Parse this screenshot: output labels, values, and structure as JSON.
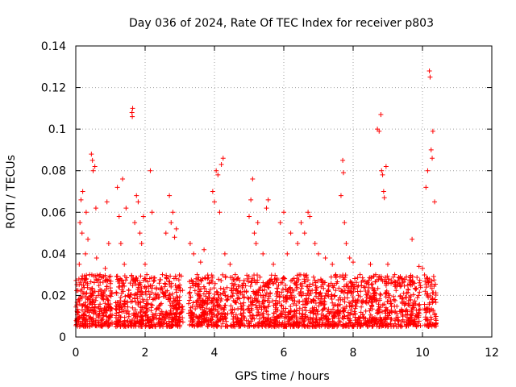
{
  "chart_data": {
    "type": "scatter",
    "title": "Day 036 of 2024, Rate Of TEC Index for receiver p803",
    "xlabel": "GPS time / hours",
    "ylabel": "ROTI / TECUs",
    "xlim": [
      0,
      12
    ],
    "ylim": [
      0,
      0.14
    ],
    "xticks": [
      0,
      2,
      4,
      6,
      8,
      10,
      12
    ],
    "xtick_labels": [
      "0",
      "2",
      "4",
      "6",
      "8",
      "10",
      "12"
    ],
    "yticks": [
      0,
      0.02,
      0.04,
      0.06,
      0.08,
      0.1,
      0.12,
      0.14
    ],
    "ytick_labels": [
      "0",
      "0.02",
      "0.04",
      "0.06",
      "0.08",
      "0.1",
      "0.12",
      "0.14"
    ],
    "grid": true,
    "marker": "+",
    "marker_color": "#ff0000",
    "series_name": "ROTI",
    "points": [
      [
        0.05,
        0.012
      ],
      [
        0.08,
        0.018
      ],
      [
        0.1,
        0.035
      ],
      [
        0.12,
        0.055
      ],
      [
        0.15,
        0.066
      ],
      [
        0.18,
        0.05
      ],
      [
        0.2,
        0.07
      ],
      [
        0.22,
        0.025
      ],
      [
        0.28,
        0.04
      ],
      [
        0.3,
        0.06
      ],
      [
        0.35,
        0.047
      ],
      [
        0.4,
        0.03
      ],
      [
        0.45,
        0.088
      ],
      [
        0.48,
        0.085
      ],
      [
        0.5,
        0.08
      ],
      [
        0.55,
        0.082
      ],
      [
        0.58,
        0.062
      ],
      [
        0.6,
        0.038
      ],
      [
        0.65,
        0.02
      ],
      [
        0.7,
        0.03
      ],
      [
        0.8,
        0.018
      ],
      [
        0.85,
        0.033
      ],
      [
        0.9,
        0.065
      ],
      [
        0.95,
        0.045
      ],
      [
        1.2,
        0.072
      ],
      [
        1.25,
        0.058
      ],
      [
        1.3,
        0.045
      ],
      [
        1.35,
        0.076
      ],
      [
        1.4,
        0.035
      ],
      [
        1.45,
        0.062
      ],
      [
        1.5,
        0.02
      ],
      [
        1.62,
        0.108
      ],
      [
        1.63,
        0.106
      ],
      [
        1.64,
        0.11
      ],
      [
        1.7,
        0.055
      ],
      [
        1.75,
        0.068
      ],
      [
        1.8,
        0.065
      ],
      [
        1.85,
        0.05
      ],
      [
        1.9,
        0.045
      ],
      [
        1.95,
        0.058
      ],
      [
        2.0,
        0.035
      ],
      [
        2.05,
        0.03
      ],
      [
        2.1,
        0.022
      ],
      [
        2.15,
        0.08
      ],
      [
        2.2,
        0.06
      ],
      [
        2.5,
        0.03
      ],
      [
        2.6,
        0.05
      ],
      [
        2.7,
        0.068
      ],
      [
        2.75,
        0.055
      ],
      [
        2.8,
        0.06
      ],
      [
        2.85,
        0.048
      ],
      [
        2.9,
        0.052
      ],
      [
        3.0,
        0.025
      ],
      [
        3.3,
        0.045
      ],
      [
        3.4,
        0.04
      ],
      [
        3.5,
        0.03
      ],
      [
        3.6,
        0.036
      ],
      [
        3.7,
        0.042
      ],
      [
        3.8,
        0.028
      ],
      [
        3.95,
        0.07
      ],
      [
        4.0,
        0.065
      ],
      [
        4.05,
        0.08
      ],
      [
        4.1,
        0.078
      ],
      [
        4.15,
        0.06
      ],
      [
        4.2,
        0.083
      ],
      [
        4.25,
        0.086
      ],
      [
        4.3,
        0.04
      ],
      [
        4.45,
        0.035
      ],
      [
        4.6,
        0.03
      ],
      [
        4.8,
        0.025
      ],
      [
        5.0,
        0.058
      ],
      [
        5.05,
        0.066
      ],
      [
        5.1,
        0.076
      ],
      [
        5.15,
        0.05
      ],
      [
        5.2,
        0.045
      ],
      [
        5.25,
        0.055
      ],
      [
        5.4,
        0.04
      ],
      [
        5.5,
        0.062
      ],
      [
        5.55,
        0.066
      ],
      [
        5.7,
        0.035
      ],
      [
        5.9,
        0.055
      ],
      [
        6.0,
        0.06
      ],
      [
        6.1,
        0.04
      ],
      [
        6.2,
        0.05
      ],
      [
        6.4,
        0.045
      ],
      [
        6.5,
        0.055
      ],
      [
        6.6,
        0.05
      ],
      [
        6.7,
        0.06
      ],
      [
        6.75,
        0.058
      ],
      [
        6.9,
        0.045
      ],
      [
        7.0,
        0.04
      ],
      [
        7.2,
        0.038
      ],
      [
        7.4,
        0.035
      ],
      [
        7.5,
        0.03
      ],
      [
        7.65,
        0.068
      ],
      [
        7.7,
        0.085
      ],
      [
        7.72,
        0.079
      ],
      [
        7.75,
        0.055
      ],
      [
        7.8,
        0.045
      ],
      [
        7.9,
        0.038
      ],
      [
        8.0,
        0.036
      ],
      [
        8.2,
        0.03
      ],
      [
        8.5,
        0.035
      ],
      [
        8.65,
        0.03
      ],
      [
        8.7,
        0.1
      ],
      [
        8.75,
        0.099
      ],
      [
        8.8,
        0.107
      ],
      [
        8.82,
        0.08
      ],
      [
        8.85,
        0.078
      ],
      [
        8.88,
        0.07
      ],
      [
        8.9,
        0.067
      ],
      [
        8.95,
        0.082
      ],
      [
        9.0,
        0.035
      ],
      [
        9.2,
        0.03
      ],
      [
        9.4,
        0.028
      ],
      [
        9.7,
        0.047
      ],
      [
        9.9,
        0.034
      ],
      [
        10.0,
        0.033
      ],
      [
        10.1,
        0.072
      ],
      [
        10.15,
        0.08
      ],
      [
        10.2,
        0.128
      ],
      [
        10.22,
        0.125
      ],
      [
        10.25,
        0.09
      ],
      [
        10.28,
        0.086
      ],
      [
        10.3,
        0.099
      ],
      [
        10.35,
        0.065
      ]
    ],
    "dense_band": {
      "description": "dense scatter of points between ROTI 0.005 and ~0.03 across 0-10.4 h",
      "x_range": [
        0.0,
        10.4
      ],
      "y_range": [
        0.005,
        0.03
      ]
    }
  }
}
